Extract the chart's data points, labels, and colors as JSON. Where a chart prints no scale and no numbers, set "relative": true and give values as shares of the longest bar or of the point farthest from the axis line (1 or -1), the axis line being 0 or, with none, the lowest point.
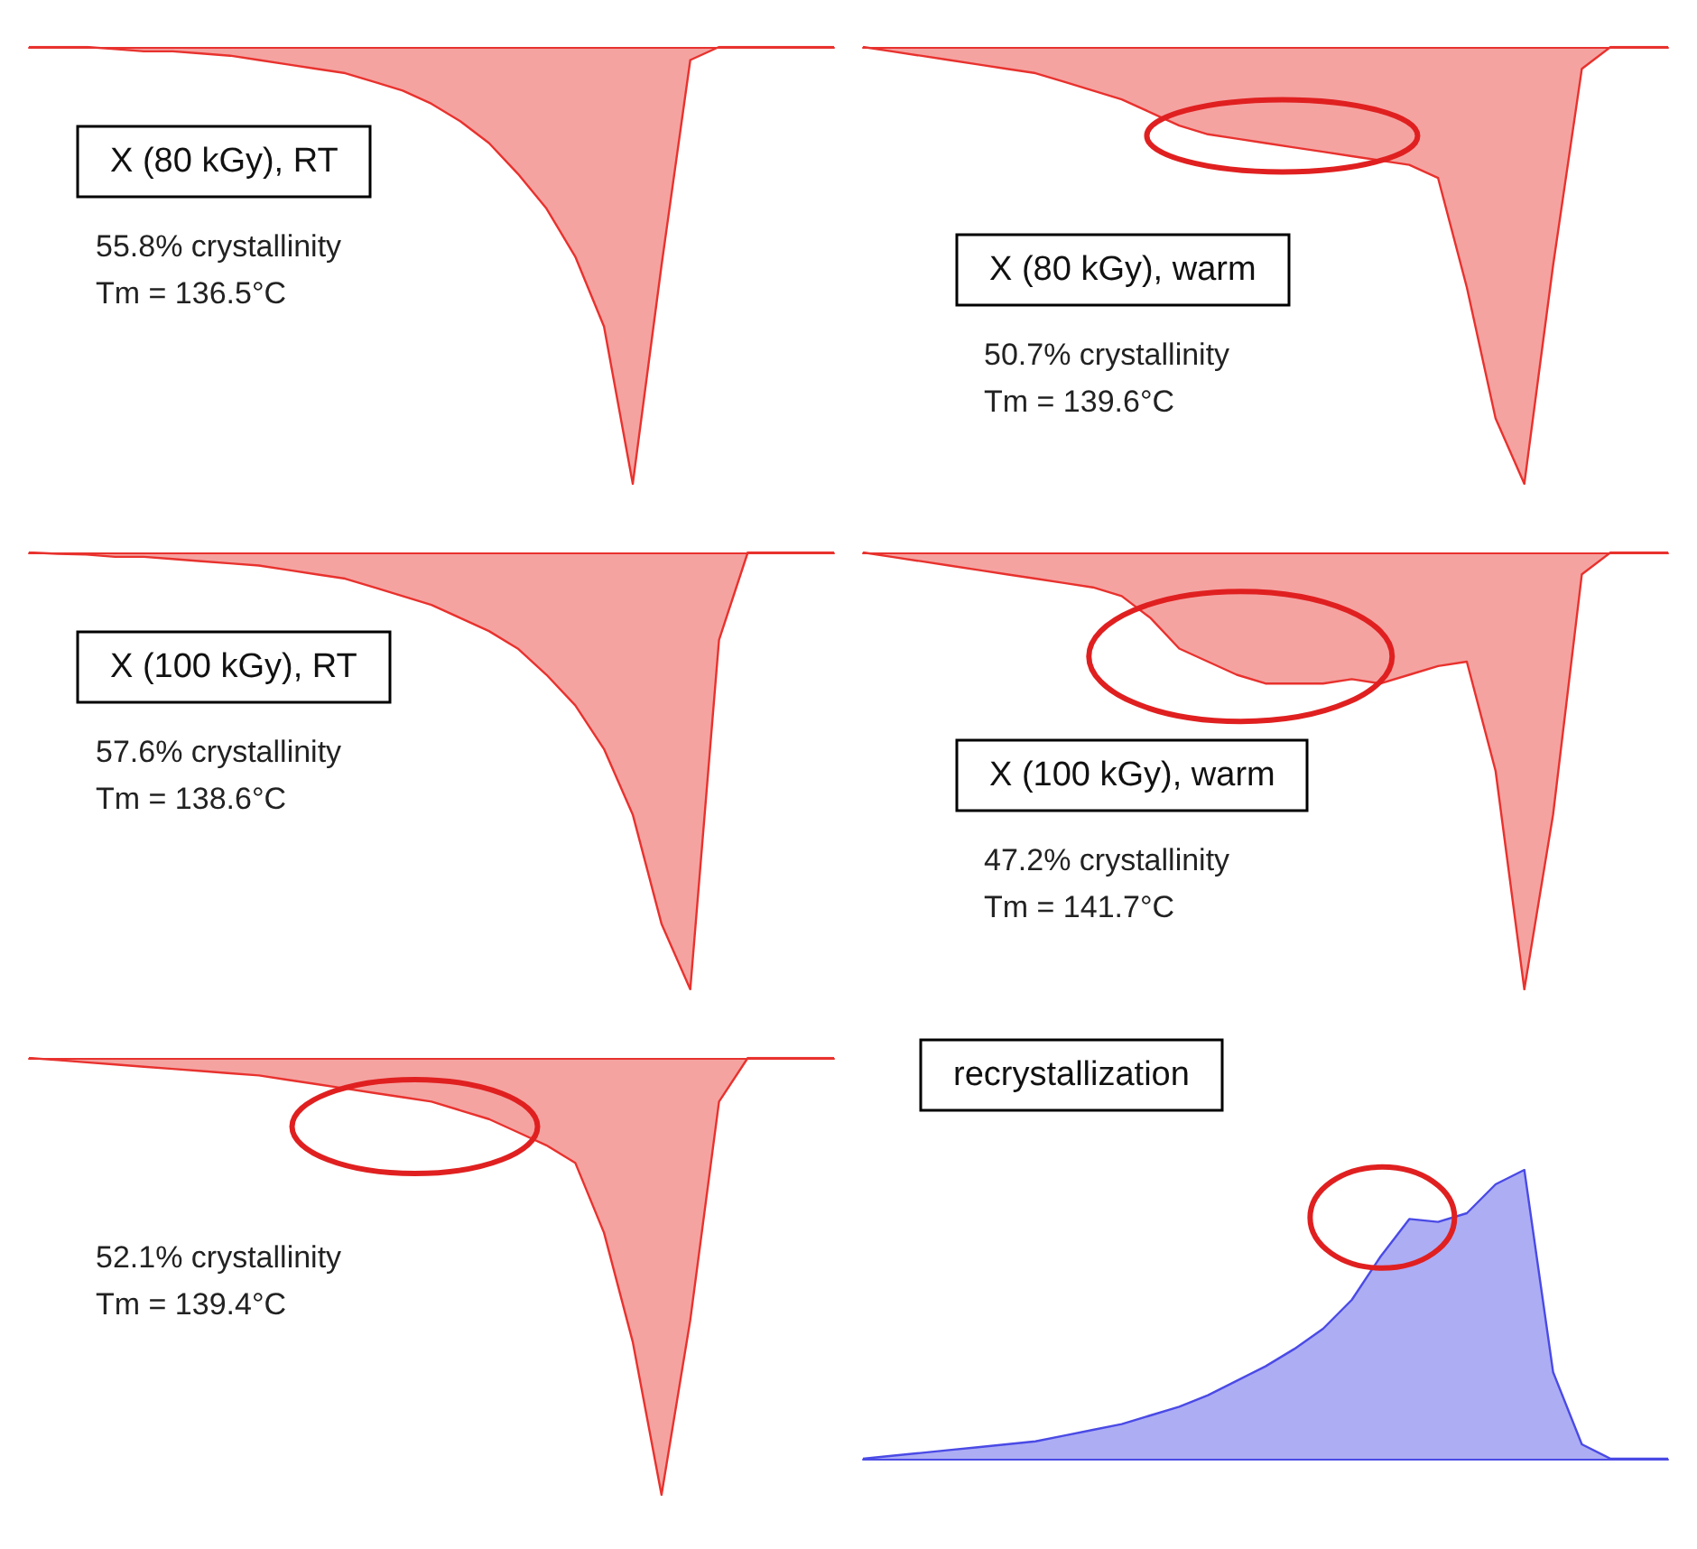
{
  "chart_data": [
    {
      "type": "area",
      "title": "X (80 kGy), RT",
      "annotations": [
        "55.8% crystallinity",
        "Tm = 136.5°C"
      ],
      "relative": true,
      "color": "#e8322e",
      "categories": [
        null,
        null,
        null,
        null,
        null,
        null,
        null,
        null,
        null,
        null,
        null,
        null,
        null,
        null,
        null,
        null,
        null,
        null,
        null,
        null,
        null,
        null,
        null,
        null,
        null,
        null,
        null,
        null,
        null
      ],
      "values": [
        0,
        0,
        0,
        -0.005,
        -0.01,
        -0.01,
        -0.015,
        -0.02,
        -0.03,
        -0.04,
        -0.05,
        -0.06,
        -0.08,
        -0.1,
        -0.13,
        -0.17,
        -0.22,
        -0.29,
        -0.37,
        -0.48,
        -0.64,
        -1,
        -0.5,
        -0.03,
        0,
        0,
        0,
        0,
        0
      ]
    },
    {
      "type": "area",
      "title": "X (80 kGy), warm",
      "annotations": [
        "50.7% crystallinity",
        "Tm = 139.6°C"
      ],
      "relative": true,
      "color": "#e8322e",
      "categories": [
        null,
        null,
        null,
        null,
        null,
        null,
        null,
        null,
        null,
        null,
        null,
        null,
        null,
        null,
        null,
        null,
        null,
        null,
        null,
        null,
        null,
        null,
        null,
        null,
        null,
        null,
        null,
        null,
        null
      ],
      "values": [
        0,
        -0.01,
        -0.02,
        -0.03,
        -0.04,
        -0.05,
        -0.06,
        -0.08,
        -0.1,
        -0.12,
        -0.15,
        -0.18,
        -0.2,
        -0.21,
        -0.22,
        -0.23,
        -0.24,
        -0.25,
        -0.26,
        -0.27,
        -0.3,
        -0.55,
        -0.85,
        -1,
        -0.5,
        -0.05,
        0,
        0,
        0
      ]
    },
    {
      "type": "area",
      "title": "X (100 kGy), RT",
      "annotations": [
        "57.6% crystallinity",
        "Tm = 138.6°C"
      ],
      "relative": true,
      "color": "#e8322e",
      "categories": [
        null,
        null,
        null,
        null,
        null,
        null,
        null,
        null,
        null,
        null,
        null,
        null,
        null,
        null,
        null,
        null,
        null,
        null,
        null,
        null,
        null,
        null,
        null,
        null,
        null,
        null,
        null,
        null,
        null
      ],
      "values": [
        0,
        -0.003,
        -0.005,
        -0.01,
        -0.01,
        -0.015,
        -0.02,
        -0.025,
        -0.03,
        -0.04,
        -0.05,
        -0.06,
        -0.08,
        -0.1,
        -0.12,
        -0.15,
        -0.18,
        -0.22,
        -0.28,
        -0.35,
        -0.45,
        -0.6,
        -0.85,
        -1,
        -0.2,
        0,
        0,
        0,
        0
      ]
    },
    {
      "type": "area",
      "title": "X (100 kGy), warm",
      "annotations": [
        "47.2% crystallinity",
        "Tm = 141.7°C"
      ],
      "relative": true,
      "color": "#e8322e",
      "categories": [
        null,
        null,
        null,
        null,
        null,
        null,
        null,
        null,
        null,
        null,
        null,
        null,
        null,
        null,
        null,
        null,
        null,
        null,
        null,
        null,
        null,
        null,
        null,
        null,
        null,
        null,
        null,
        null,
        null
      ],
      "values": [
        0,
        -0.01,
        -0.02,
        -0.03,
        -0.04,
        -0.05,
        -0.06,
        -0.07,
        -0.08,
        -0.1,
        -0.15,
        -0.22,
        -0.25,
        -0.28,
        -0.3,
        -0.3,
        -0.3,
        -0.29,
        -0.3,
        -0.28,
        -0.26,
        -0.25,
        -0.5,
        -1,
        -0.6,
        -0.05,
        0,
        0,
        0
      ]
    },
    {
      "type": "area",
      "annotations": [
        "52.1% crystallinity",
        "Tm = 139.4°C"
      ],
      "relative": true,
      "color": "#e8322e",
      "categories": [
        null,
        null,
        null,
        null,
        null,
        null,
        null,
        null,
        null,
        null,
        null,
        null,
        null,
        null,
        null,
        null,
        null,
        null,
        null,
        null,
        null,
        null,
        null,
        null,
        null,
        null,
        null,
        null,
        null
      ],
      "values": [
        0,
        -0.005,
        -0.01,
        -0.015,
        -0.02,
        -0.025,
        -0.03,
        -0.035,
        -0.04,
        -0.05,
        -0.06,
        -0.07,
        -0.08,
        -0.09,
        -0.1,
        -0.12,
        -0.14,
        -0.17,
        -0.2,
        -0.24,
        -0.4,
        -0.65,
        -1,
        -0.6,
        -0.1,
        0,
        0,
        0,
        0
      ]
    },
    {
      "type": "area",
      "title": "recrystallization",
      "relative": true,
      "color": "#4a4ae6",
      "categories": [
        null,
        null,
        null,
        null,
        null,
        null,
        null,
        null,
        null,
        null,
        null,
        null,
        null,
        null,
        null,
        null,
        null,
        null,
        null,
        null,
        null,
        null,
        null,
        null,
        null,
        null,
        null,
        null,
        null
      ],
      "values": [
        0,
        0.01,
        0.02,
        0.03,
        0.04,
        0.05,
        0.06,
        0.08,
        0.1,
        0.12,
        0.15,
        0.18,
        0.22,
        0.27,
        0.32,
        0.38,
        0.45,
        0.55,
        0.7,
        0.83,
        0.82,
        0.85,
        0.95,
        1,
        0.3,
        0.05,
        0,
        0,
        0
      ]
    }
  ]
}
